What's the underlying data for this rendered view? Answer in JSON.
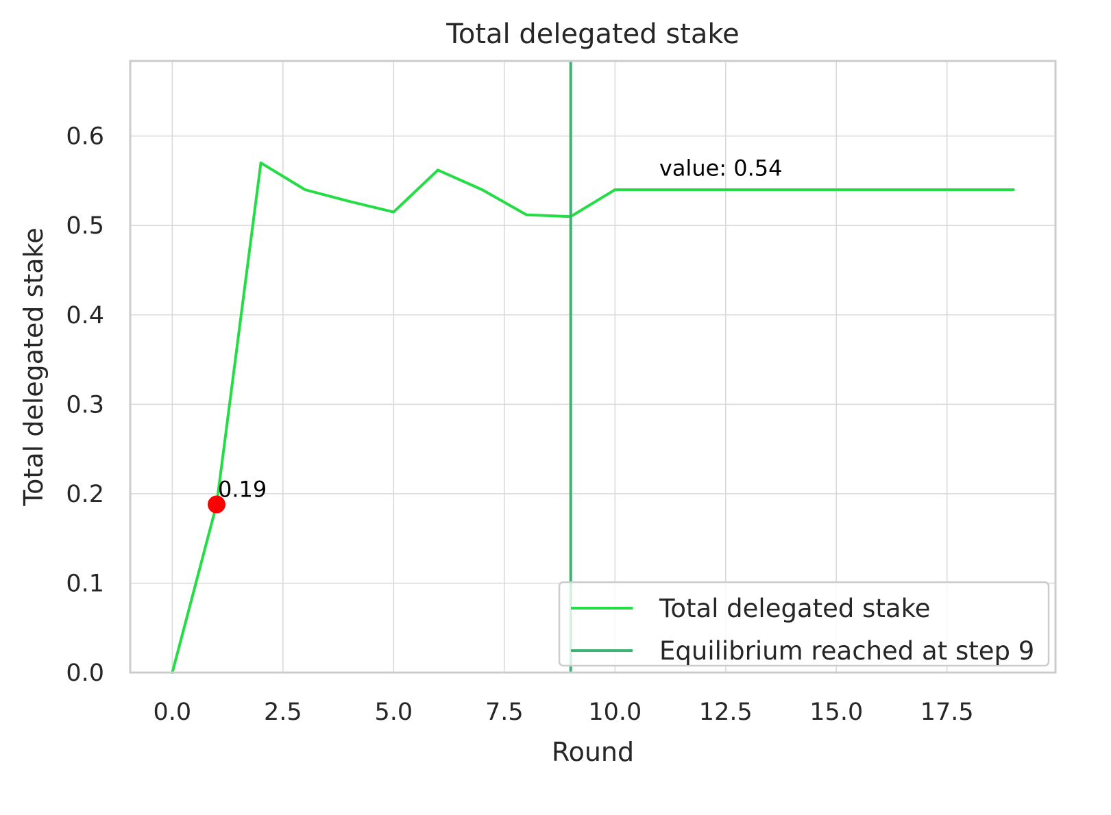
{
  "chart_data": {
    "type": "line",
    "title": "Total delegated stake",
    "xlabel": "Round",
    "ylabel": "Total delegated stake",
    "xlim": [
      -0.95,
      19.95
    ],
    "ylim": [
      0,
      0.684
    ],
    "xticks": [
      0.0,
      2.5,
      5.0,
      7.5,
      10.0,
      12.5,
      15.0,
      17.5
    ],
    "xtick_labels": [
      "0.0",
      "2.5",
      "5.0",
      "7.5",
      "10.0",
      "12.5",
      "15.0",
      "17.5"
    ],
    "yticks": [
      0.0,
      0.1,
      0.2,
      0.3,
      0.4,
      0.5,
      0.6
    ],
    "ytick_labels": [
      "0.0",
      "0.1",
      "0.2",
      "0.3",
      "0.4",
      "0.5",
      "0.6"
    ],
    "grid": true,
    "legend_position": "lower-right",
    "series": [
      {
        "name": "Total delegated stake",
        "color": "#22dd44",
        "x": [
          0,
          1,
          2,
          3,
          4,
          5,
          6,
          7,
          8,
          9,
          10,
          11,
          12,
          13,
          14,
          15,
          16,
          17,
          18,
          19
        ],
        "y": [
          0.0,
          0.188,
          0.57,
          0.54,
          0.527,
          0.515,
          0.562,
          0.54,
          0.512,
          0.51,
          0.54,
          0.54,
          0.54,
          0.54,
          0.54,
          0.54,
          0.54,
          0.54,
          0.54,
          0.54
        ]
      }
    ],
    "vlines": [
      {
        "name": "Equilibrium reached at step 9",
        "x": 9,
        "color": "#3cb371"
      }
    ],
    "markers": [
      {
        "x": 1,
        "y": 0.188,
        "color": "#ff0000",
        "label": "0.19"
      }
    ],
    "annotations": [
      {
        "text": "value: 0.54",
        "x": 11,
        "y": 0.565
      }
    ],
    "colors": {
      "grid": "#d9d9d9",
      "frame": "#cccccc",
      "text": "#262626",
      "legend_border": "#cccccc"
    }
  }
}
